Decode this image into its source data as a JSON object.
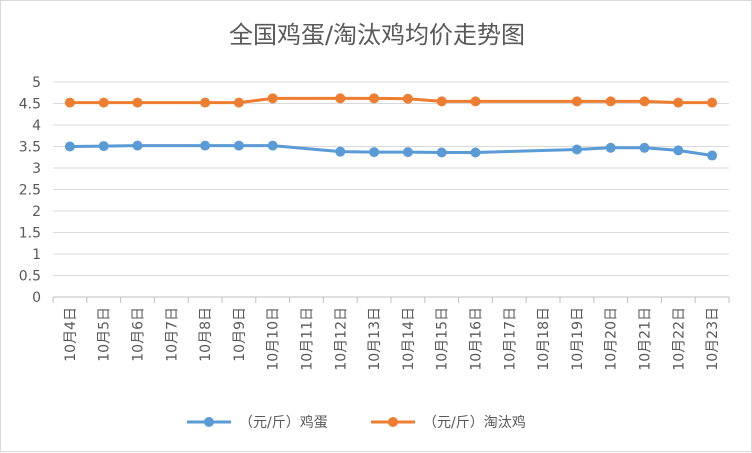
{
  "chart_data": {
    "type": "line",
    "title": "全国鸡蛋/淘汰鸡均价走势图",
    "xlabel": "",
    "ylabel": "",
    "categories": [
      "10月4日",
      "10月5日",
      "10月6日",
      "10月7日",
      "10月8日",
      "10月9日",
      "10月10日",
      "10月11日",
      "10月12日",
      "10月13日",
      "10月14日",
      "10月15日",
      "10月16日",
      "10月17日",
      "10月18日",
      "10月19日",
      "10月20日",
      "10月21日",
      "10月22日",
      "10月23日"
    ],
    "ylim": [
      0,
      5
    ],
    "yticks": [
      "0",
      "0.5",
      "1",
      "1.5",
      "2",
      "2.5",
      "3",
      "3.5",
      "4",
      "4.5",
      "5"
    ],
    "grid": true,
    "legend_position": "bottom",
    "series": [
      {
        "name": "（元/斤）鸡蛋",
        "color": "#5b9bd5",
        "values": [
          3.5,
          3.51,
          3.52,
          null,
          3.52,
          3.52,
          3.52,
          null,
          3.38,
          3.37,
          3.37,
          3.36,
          3.36,
          null,
          null,
          3.43,
          3.47,
          3.47,
          3.41,
          3.29
        ]
      },
      {
        "name": "（元/斤）淘汰鸡",
        "color": "#ed7d31",
        "values": [
          4.52,
          4.52,
          4.52,
          null,
          4.52,
          4.52,
          4.62,
          null,
          4.62,
          4.62,
          4.61,
          4.55,
          4.55,
          null,
          null,
          4.55,
          4.55,
          4.55,
          4.52,
          4.52
        ]
      }
    ]
  }
}
